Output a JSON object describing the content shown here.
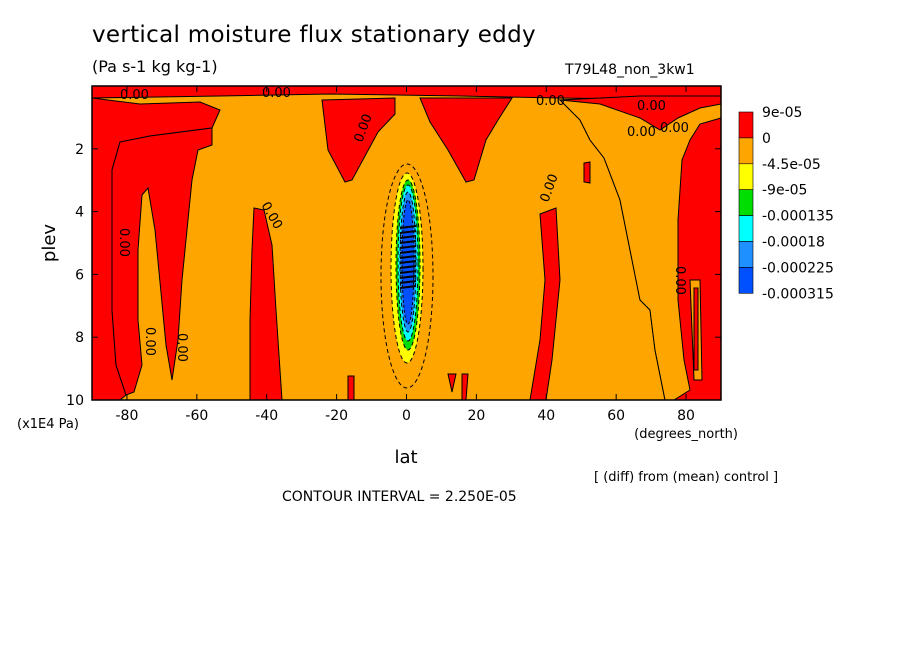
{
  "title": "vertical moisture flux stationary eddy",
  "units": "(Pa s-1 kg kg-1)",
  "run_label": "T79L48_non_3kw1",
  "diff_label": "[ (diff) from (mean) control ]",
  "contour_interval": "CONTOUR INTERVAL = 2.250E-05",
  "chart_data": {
    "type": "heatmap",
    "title": "vertical moisture flux stationary eddy",
    "xlabel": "lat",
    "xunits": "(degrees_north)",
    "ylabel": "plev",
    "yunits": "(x1E4 Pa)",
    "xlim": [
      -90,
      90
    ],
    "ylim": [
      10,
      0
    ],
    "xticks": [
      -80,
      -60,
      -40,
      -20,
      0,
      20,
      40,
      60,
      80
    ],
    "yticks": [
      2,
      4,
      6,
      8,
      10
    ],
    "colorbar": {
      "levels": [
        "9e-05",
        "0",
        "-4.5e-05",
        "-9e-05",
        "-0.000135",
        "-0.00018",
        "-0.000225",
        "-0.000315"
      ],
      "colors": [
        "#ff0000",
        "#ffa500",
        "#ffff00",
        "#00dd00",
        "#00ffff",
        "#1e90ff",
        "#0050ff"
      ]
    },
    "contour_labels": [
      "0.00",
      "0.00",
      "0.00",
      "0.00",
      "0.00",
      "0.00",
      "0.00",
      "0.00",
      "0.00",
      "0.00",
      "0.00",
      "0.00",
      "0.00"
    ],
    "regions": [
      {
        "level": "positive (0 to 9e-05)",
        "color": "#ff0000",
        "lat_range": [
          -90,
          -58
        ],
        "plev_range": [
          0.5,
          10
        ]
      },
      {
        "level": "positive (0 to 9e-05)",
        "color": "#ff0000",
        "lat_range": [
          -50,
          -38
        ],
        "plev_range": [
          3.8,
          10
        ]
      },
      {
        "level": "positive (0 to 9e-05)",
        "color": "#ff0000",
        "lat_range": [
          -24,
          18
        ],
        "plev_range": [
          0,
          3
        ]
      },
      {
        "level": "positive (0 to 9e-05)",
        "color": "#ff0000",
        "lat_range": [
          40,
          90
        ],
        "plev_range": [
          3,
          10
        ]
      },
      {
        "level": "negative minimum near equator",
        "color": "#0050ff",
        "lat_range": [
          -4,
          4
        ],
        "plev_range": [
          3.5,
          8.5
        ],
        "min_value": -0.000315
      }
    ]
  }
}
